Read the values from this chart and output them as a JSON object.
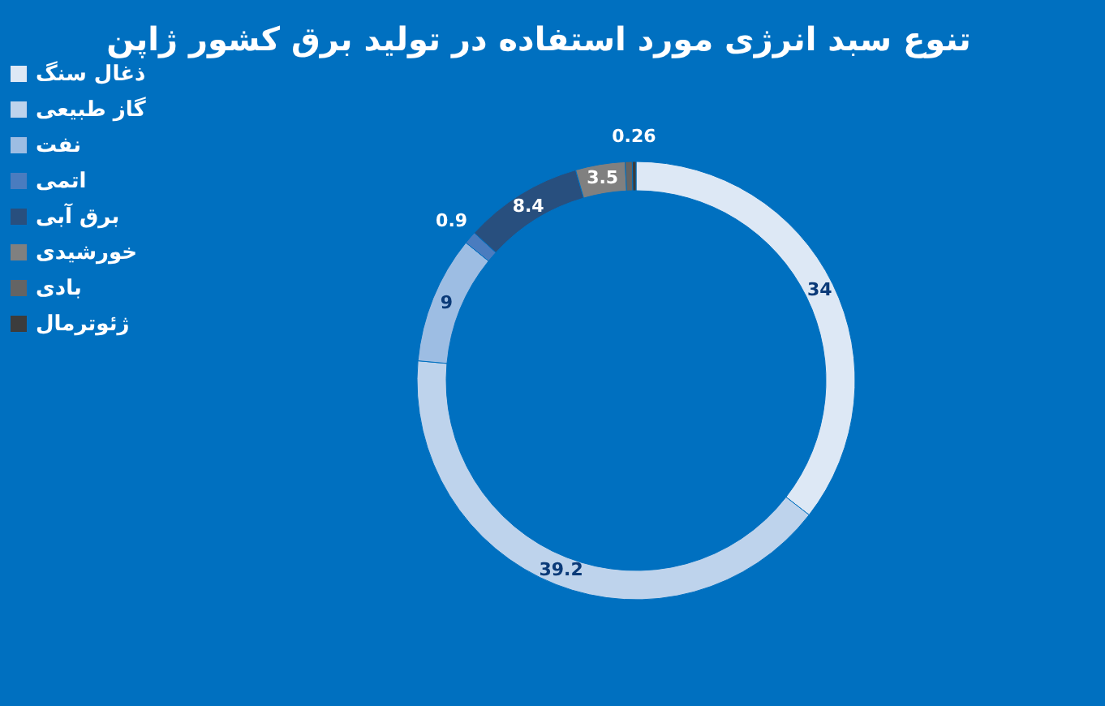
{
  "chart_data": {
    "type": "donut",
    "title": "تنوع سبد انرژی مورد استفاده در تولید برق کشور ژاپن",
    "categories": [
      "ذغال سنگ",
      "گاز طبیعی",
      "نفت",
      "اتمی",
      "برق آبی",
      "خورشیدی",
      "بادی",
      "ژئوترمال"
    ],
    "values": [
      34,
      39.2,
      9,
      0.9,
      8.4,
      3.5,
      0.5,
      0.26
    ],
    "value_labels": [
      "34",
      "39.2",
      "9",
      "0.9",
      "8.4",
      "3.5",
      null,
      "0.26"
    ],
    "colors": [
      "#dde8f5",
      "#bed3ec",
      "#9dbde3",
      "#4a7cbf",
      "#284f7e",
      "#808080",
      "#646464",
      "#3c3c3c"
    ],
    "legend": "left"
  }
}
